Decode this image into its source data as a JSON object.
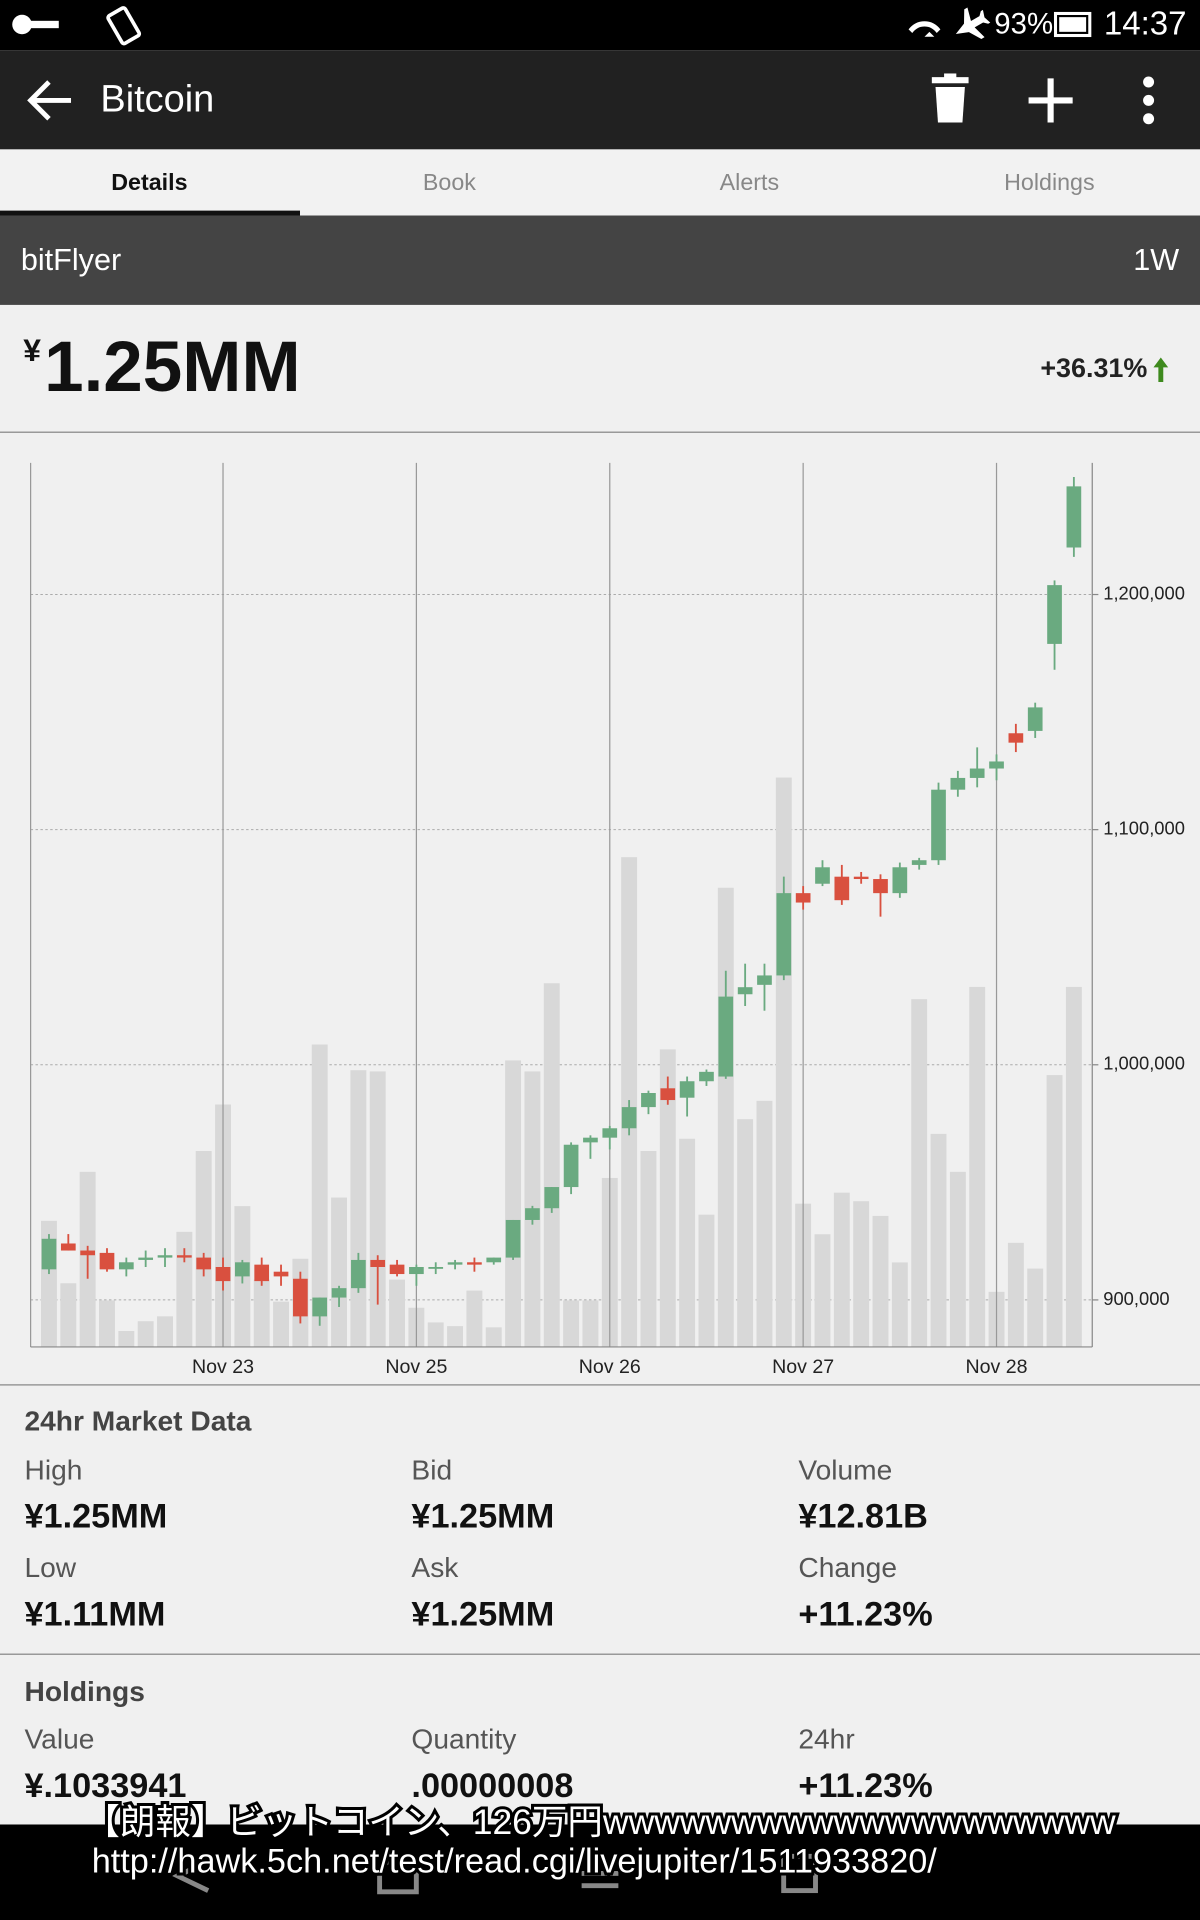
{
  "status_bar": {
    "battery": "93%",
    "time": "14:37"
  },
  "toolbar": {
    "title": "Bitcoin"
  },
  "tabs": [
    "Details",
    "Book",
    "Alerts",
    "Holdings"
  ],
  "exchange": {
    "name": "bitFlyer",
    "range": "1W"
  },
  "price": {
    "currency": "¥",
    "value": "1.25MM",
    "change": "+36.31%"
  },
  "chart_data": {
    "type": "candlestick",
    "categories": [
      null,
      null,
      null,
      null,
      null,
      null,
      null,
      null,
      null,
      "Nov 23",
      null,
      null,
      null,
      null,
      null,
      null,
      null,
      null,
      null,
      "Nov 25",
      null,
      null,
      null,
      null,
      null,
      null,
      null,
      null,
      null,
      "Nov 26",
      null,
      null,
      null,
      null,
      null,
      null,
      null,
      null,
      null,
      "Nov 27",
      null,
      null,
      null,
      null,
      null,
      null,
      null,
      null,
      null,
      "Nov 28",
      null,
      null,
      null,
      null
    ],
    "open": [
      913000,
      924000,
      921000,
      920000,
      913000,
      917000,
      918000,
      919000,
      918000,
      914000,
      910000,
      915000,
      912000,
      909000,
      893000,
      901000,
      905000,
      917000,
      915000,
      911000,
      914000,
      915000,
      916000,
      916000,
      918000,
      934000,
      939000,
      948000,
      967000,
      969000,
      973000,
      982000,
      990000,
      986000,
      993000,
      995000,
      1030000,
      1034000,
      1038000,
      1073000,
      1077000,
      1080000,
      1080000,
      1079000,
      1073000,
      1085000,
      1087000,
      1117000,
      1122000,
      1126000,
      1141000,
      1142000,
      1179000,
      1220000
    ],
    "high": [
      928000,
      928000,
      923000,
      922000,
      918000,
      921000,
      922000,
      922000,
      920000,
      918000,
      917000,
      918000,
      915000,
      912000,
      901000,
      906000,
      920000,
      919000,
      917000,
      915000,
      916000,
      917000,
      918000,
      918000,
      934000,
      940000,
      948000,
      967000,
      970000,
      974000,
      985000,
      989000,
      995000,
      995000,
      998000,
      1040000,
      1043000,
      1043000,
      1080000,
      1076000,
      1087000,
      1085000,
      1082000,
      1081000,
      1086000,
      1088000,
      1120000,
      1125000,
      1135000,
      1132000,
      1145000,
      1154000,
      1206000,
      1250000
    ],
    "low": [
      911000,
      921000,
      909000,
      912000,
      910000,
      914000,
      914000,
      916000,
      910000,
      904000,
      907000,
      906000,
      906000,
      890000,
      889000,
      897000,
      903000,
      898000,
      910000,
      906000,
      911000,
      913000,
      912000,
      915000,
      917000,
      932000,
      937000,
      945000,
      960000,
      964000,
      970000,
      979000,
      983000,
      978000,
      991000,
      994000,
      1025000,
      1023000,
      1036000,
      1066000,
      1076000,
      1068000,
      1077000,
      1063000,
      1071000,
      1083000,
      1085000,
      1114000,
      1118000,
      1121000,
      1133000,
      1139000,
      1168000,
      1216000
    ],
    "close": [
      926000,
      921000,
      919000,
      913000,
      916000,
      918000,
      919000,
      918000,
      913000,
      908000,
      916000,
      908000,
      910000,
      893000,
      901000,
      905000,
      917000,
      914000,
      911000,
      914000,
      914000,
      916000,
      915000,
      918000,
      934000,
      939000,
      948000,
      966000,
      969000,
      973000,
      982000,
      988000,
      985000,
      993000,
      997000,
      1029000,
      1033000,
      1038000,
      1073000,
      1069000,
      1084000,
      1070000,
      1079000,
      1073000,
      1084000,
      1087000,
      1117000,
      1122000,
      1126000,
      1129000,
      1137000,
      1152000,
      1204000,
      1246000
    ],
    "volume": [
      103,
      52,
      143,
      38,
      13,
      21,
      25,
      94,
      160,
      198,
      115,
      55,
      37,
      72,
      247,
      122,
      226,
      225,
      55,
      32,
      20,
      17,
      46,
      16,
      234,
      225,
      297,
      38,
      38,
      138,
      400,
      160,
      243,
      170,
      108,
      375,
      186,
      201,
      465,
      117,
      92,
      126,
      119,
      107,
      69,
      284,
      174,
      143,
      294,
      45,
      85,
      64,
      222,
      294
    ],
    "up_color": "#6aaa80",
    "down_color": "#d9503f",
    "volume_color": "#d8d8d8",
    "ylim": [
      880000,
      1256000
    ],
    "yticks": [
      {
        "value": 900000,
        "label": "900,000"
      },
      {
        "value": 1000000,
        "label": "1,000,000"
      },
      {
        "value": 1100000,
        "label": "1,100,000"
      },
      {
        "value": 1200000,
        "label": "1,200,000"
      }
    ],
    "grid": true
  },
  "market_data": {
    "title": "24hr Market Data",
    "items": [
      {
        "label": "High",
        "value": "¥1.25MM"
      },
      {
        "label": "Bid",
        "value": "¥1.25MM"
      },
      {
        "label": "Volume",
        "value": "¥12.81B"
      },
      {
        "label": "Low",
        "value": "¥1.11MM"
      },
      {
        "label": "Ask",
        "value": "¥1.25MM"
      },
      {
        "label": "Change",
        "value": "+11.23%"
      }
    ]
  },
  "holdings": {
    "title": "Holdings",
    "items": [
      {
        "label": "Value",
        "value": "¥.1033941"
      },
      {
        "label": "Quantity",
        "value": ".00000008"
      },
      {
        "label": "24hr",
        "value": "+11.23%"
      }
    ]
  },
  "overlay_caption": [
    "【朗報】ビットコイン、126万円wwwwwwwwwwwwwwwwwwww",
    "http://hawk.5ch.net/test/read.cgi/livejupiter/1511933820/"
  ]
}
